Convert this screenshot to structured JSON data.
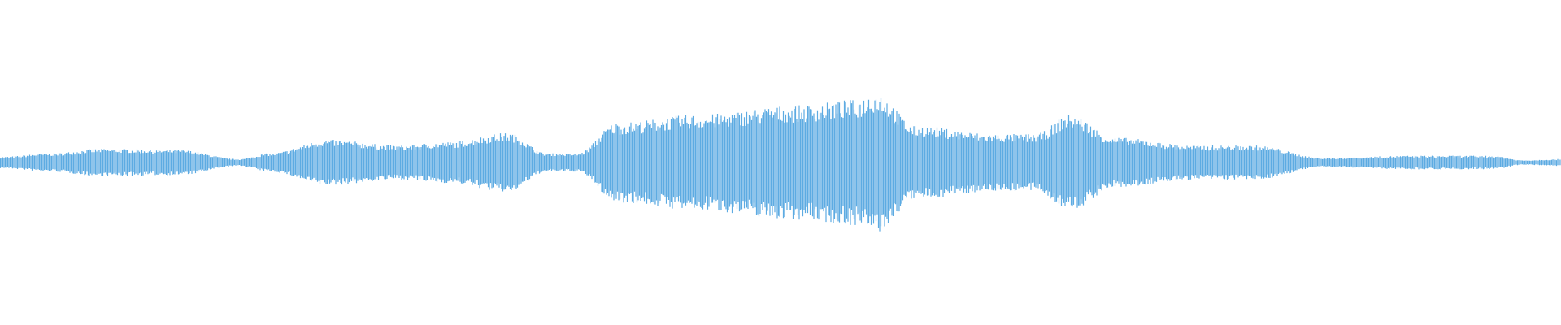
{
  "waveform": {
    "color": "#5dabe2",
    "background": "#ffffff",
    "peak_level": 1.0
  }
}
